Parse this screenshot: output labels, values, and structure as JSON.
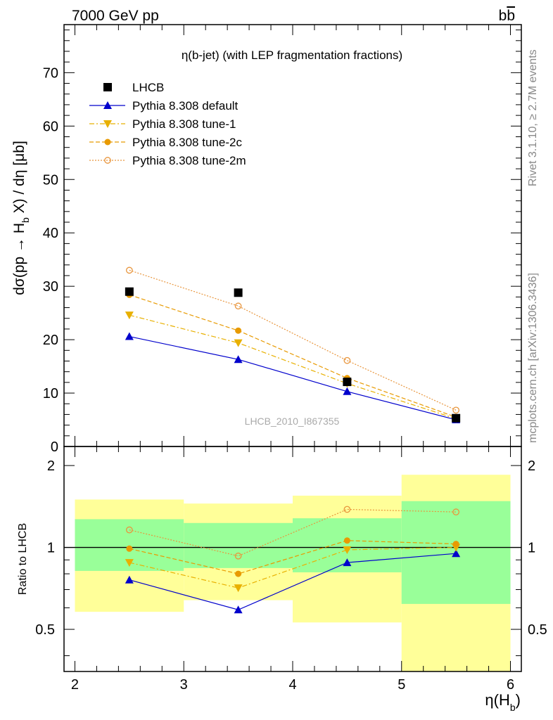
{
  "header": {
    "left": "7000 GeV pp",
    "right_base": "b",
    "right_bar": "b"
  },
  "side_labels": {
    "top": "Rivet 3.1.10, ≥ 2.7M events",
    "bottom": "mcplots.cern.ch [arXiv:1306.3436]"
  },
  "chart_data": [
    {
      "type": "scatter",
      "title": "η(b-jet) (with LEP fragmentation fractions)",
      "annotation": "LHCB_2010_I867355",
      "ylabel_parts": {
        "pre": "dσ(pp → H",
        "sub": "b",
        "post": " X) / dη [μb]"
      },
      "xlabel_parts": {
        "pre": "η(H",
        "sub": "b",
        "post": ")"
      },
      "xlim": [
        1.9,
        6.1
      ],
      "ylim": [
        0,
        79
      ],
      "yticks": [
        0,
        10,
        20,
        30,
        40,
        50,
        60,
        70
      ],
      "x": [
        2.5,
        3.5,
        4.5,
        5.5
      ],
      "series": [
        {
          "name": "LHCB",
          "style": "data",
          "marker": "square",
          "color": "#000000",
          "values": [
            29.0,
            28.8,
            12.1,
            5.3
          ]
        },
        {
          "name": "Pythia 8.308 default",
          "style": "solid",
          "marker": "triangle-up",
          "color": "#0000cc",
          "values": [
            20.6,
            16.3,
            10.3,
            5.0
          ]
        },
        {
          "name": "Pythia 8.308 tune-1",
          "style": "dashdot",
          "marker": "triangle-down",
          "color": "#e8b000",
          "values": [
            24.6,
            19.4,
            11.8,
            5.2
          ]
        },
        {
          "name": "Pythia 8.308 tune-2c",
          "style": "dashed",
          "marker": "circle-filled",
          "color": "#e89a00",
          "values": [
            28.4,
            21.7,
            12.8,
            5.5
          ]
        },
        {
          "name": "Pythia 8.308 tune-2m",
          "style": "dotted",
          "marker": "circle-open",
          "color": "#e8953c",
          "values": [
            33.0,
            26.3,
            16.1,
            6.8
          ]
        }
      ]
    },
    {
      "type": "scatter",
      "ylabel": "Ratio to LHCB",
      "log_y": true,
      "ylim": [
        0.35,
        2.35
      ],
      "yticks": [
        0.5,
        1,
        2
      ],
      "xticks": [
        2,
        3,
        4,
        5,
        6
      ],
      "reference_line": 1,
      "bands": [
        {
          "xlow": 2,
          "xhigh": 3,
          "yellow": [
            0.58,
            1.5
          ],
          "green": [
            0.82,
            1.27
          ]
        },
        {
          "xlow": 3,
          "xhigh": 4,
          "yellow": [
            0.64,
            1.45
          ],
          "green": [
            0.84,
            1.23
          ]
        },
        {
          "xlow": 4,
          "xhigh": 5,
          "yellow": [
            0.53,
            1.55
          ],
          "green": [
            0.81,
            1.28
          ]
        },
        {
          "xlow": 5,
          "xhigh": 6,
          "yellow": [
            0.35,
            1.85
          ],
          "green": [
            0.62,
            1.48
          ]
        }
      ],
      "x": [
        2.5,
        3.5,
        4.5,
        5.5
      ],
      "series": [
        {
          "name": "Pythia 8.308 default",
          "values": [
            0.76,
            0.59,
            0.88,
            0.95
          ]
        },
        {
          "name": "Pythia 8.308 tune-1",
          "values": [
            0.88,
            0.71,
            0.98,
            1.0
          ]
        },
        {
          "name": "Pythia 8.308 tune-2c",
          "values": [
            0.99,
            0.8,
            1.06,
            1.03
          ]
        },
        {
          "name": "Pythia 8.308 tune-2m",
          "values": [
            1.16,
            0.93,
            1.38,
            1.35
          ]
        }
      ]
    }
  ]
}
